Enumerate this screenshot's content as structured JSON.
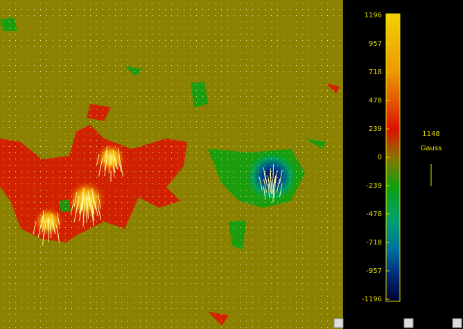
{
  "chart_data": {
    "type": "heatmap",
    "colorbar": {
      "ylim": [
        -1196,
        1196
      ],
      "yticks": [
        1196,
        957,
        718,
        478,
        239,
        0,
        -239,
        -478,
        -718,
        -957,
        -1196
      ]
    },
    "scale_value": 1148,
    "scale_unit": "Gauss"
  }
}
